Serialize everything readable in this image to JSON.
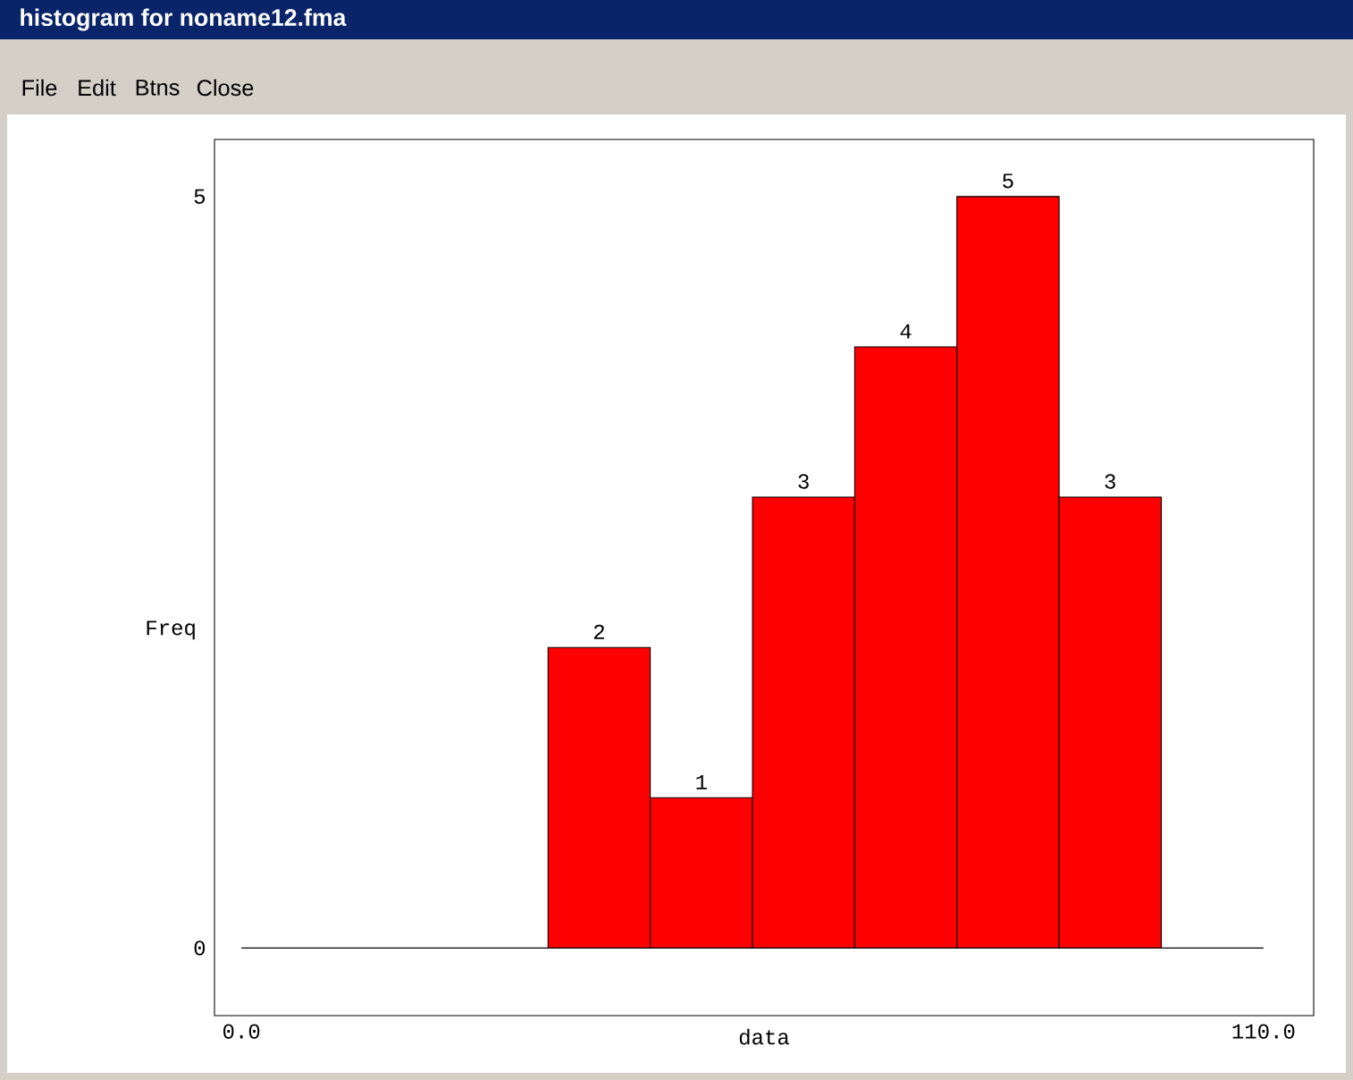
{
  "chart_data": {
    "type": "histogram",
    "title": "histogram for noname12.fma",
    "annotations": [
      "File",
      "Edit",
      "Btns",
      "Close"
    ],
    "xlabel": "data",
    "ylabel": "Freq",
    "bins": [
      33,
      44,
      55,
      66,
      77,
      88,
      99
    ],
    "values": [
      2,
      1,
      3,
      4,
      5,
      3
    ],
    "color": "#ff0000",
    "data_labels": true,
    "xlim": [
      -2.9,
      115.4
    ],
    "ylim": [
      -0.45,
      5.38
    ],
    "xticks": [
      {
        "value": 0,
        "label": "0.0"
      },
      {
        "value": 110,
        "label": "110.0"
      }
    ],
    "yticks": [
      0,
      5
    ],
    "ref_lines": [
      {
        "axis": "y",
        "value": 0
      }
    ]
  }
}
